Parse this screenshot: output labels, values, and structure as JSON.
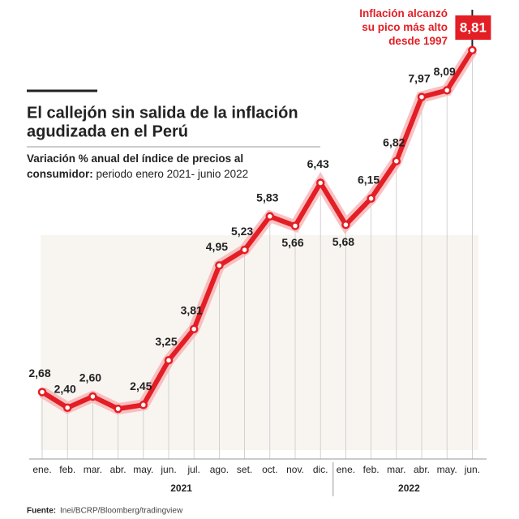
{
  "chart_data": {
    "type": "line",
    "title": [
      "El callejón sin salida de la inflación",
      "agudizada en el Perú"
    ],
    "subtitle": {
      "bold": "Variación % anual del índice de precios al consumidor:",
      "text": "periodo enero 2021- junio 2022"
    },
    "annotation": "Inflación alcanzó su pico más alto desde 1997",
    "categories": [
      "ene.",
      "feb.",
      "mar.",
      "abr.",
      "may.",
      "jun.",
      "jul.",
      "ago.",
      "set.",
      "oct.",
      "nov.",
      "dic.",
      "ene.",
      "feb.",
      "mar.",
      "abr.",
      "may.",
      "jun."
    ],
    "groups": [
      {
        "label": "2021",
        "count": 12
      },
      {
        "label": "2022",
        "count": 6
      }
    ],
    "values": [
      2.68,
      2.4,
      2.6,
      2.38,
      2.45,
      3.25,
      3.81,
      4.95,
      5.23,
      5.83,
      5.66,
      6.43,
      5.68,
      6.15,
      6.82,
      7.97,
      8.09,
      8.81
    ],
    "value_labels": [
      "2,68",
      "2,40",
      "2,60",
      null,
      "2,45",
      "3,25",
      "3,81",
      "4,95",
      "5,23",
      "5,83",
      "5,66",
      "6,43",
      "5,68",
      "6,15",
      "6,82",
      "7,97",
      "8,09",
      "8,81"
    ],
    "color": "#e31e24",
    "ylim": [
      1.8,
      9.2
    ],
    "source": {
      "label": "Fuente:",
      "text": "Inei/BCRP/Bloomberg/tradingview"
    }
  }
}
